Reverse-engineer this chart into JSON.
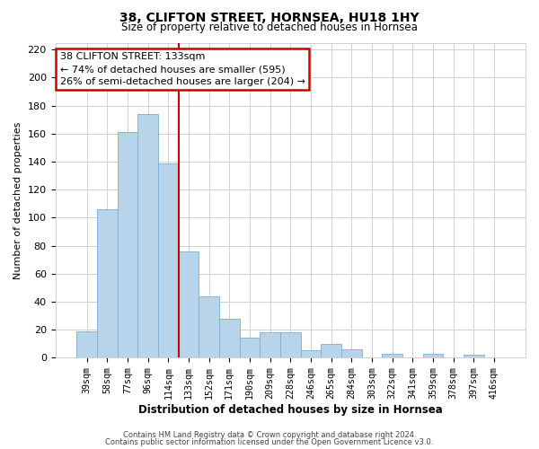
{
  "title": "38, CLIFTON STREET, HORNSEA, HU18 1HY",
  "subtitle": "Size of property relative to detached houses in Hornsea",
  "xlabel": "Distribution of detached houses by size in Hornsea",
  "ylabel": "Number of detached properties",
  "bar_labels": [
    "39sqm",
    "58sqm",
    "77sqm",
    "96sqm",
    "114sqm",
    "133sqm",
    "152sqm",
    "171sqm",
    "190sqm",
    "209sqm",
    "228sqm",
    "246sqm",
    "265sqm",
    "284sqm",
    "303sqm",
    "322sqm",
    "341sqm",
    "359sqm",
    "378sqm",
    "397sqm",
    "416sqm"
  ],
  "bar_heights": [
    19,
    106,
    161,
    174,
    139,
    76,
    44,
    28,
    14,
    18,
    18,
    5,
    10,
    6,
    0,
    3,
    0,
    3,
    0,
    2,
    0
  ],
  "bar_color": "#b8d4ea",
  "bar_edge_color": "#7aaed0",
  "vline_color": "#cc0000",
  "ylim": [
    0,
    225
  ],
  "yticks": [
    0,
    20,
    40,
    60,
    80,
    100,
    120,
    140,
    160,
    180,
    200,
    220
  ],
  "annotation_title": "38 CLIFTON STREET: 133sqm",
  "annotation_line1": "← 74% of detached houses are smaller (595)",
  "annotation_line2": "26% of semi-detached houses are larger (204) →",
  "annotation_box_color": "#ffffff",
  "annotation_box_edge": "#cc0000",
  "footer1": "Contains HM Land Registry data © Crown copyright and database right 2024.",
  "footer2": "Contains public sector information licensed under the Open Government Licence v3.0.",
  "background_color": "#ffffff",
  "grid_color": "#d0d0d0"
}
